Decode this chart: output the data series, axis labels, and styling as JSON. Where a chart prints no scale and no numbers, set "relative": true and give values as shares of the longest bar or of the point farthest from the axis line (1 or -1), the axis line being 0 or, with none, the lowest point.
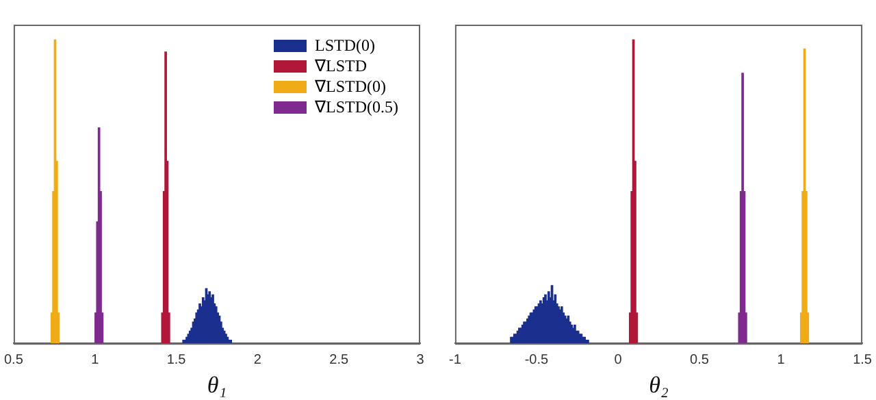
{
  "chart_data": [
    {
      "type": "bar",
      "xlabel": "θ₁",
      "relative": true,
      "xlim": [
        0.5,
        3
      ],
      "xticks": [
        0.5,
        1,
        1.5,
        2,
        2.5,
        3
      ],
      "legend": "top right",
      "series": [
        {
          "name": "LSTD(0)",
          "color": "#1b2f8f",
          "x": [
            1.545,
            1.555,
            1.565,
            1.575,
            1.585,
            1.595,
            1.605,
            1.615,
            1.625,
            1.635,
            1.645,
            1.655,
            1.665,
            1.675,
            1.685,
            1.695,
            1.705,
            1.715,
            1.725,
            1.735,
            1.745,
            1.755,
            1.765,
            1.775,
            1.785,
            1.795,
            1.805,
            1.815,
            1.825,
            1.835
          ],
          "values": [
            0.01,
            0.01,
            0.02,
            0.03,
            0.04,
            0.05,
            0.07,
            0.08,
            0.1,
            0.11,
            0.13,
            0.12,
            0.15,
            0.14,
            0.18,
            0.16,
            0.17,
            0.15,
            0.16,
            0.13,
            0.12,
            0.1,
            0.09,
            0.07,
            0.05,
            0.04,
            0.03,
            0.02,
            0.01,
            0.01
          ]
        },
        {
          "name": "∇LSTD",
          "color": "#b0183a",
          "x": [
            1.415,
            1.425,
            1.435,
            1.445,
            1.455
          ],
          "values": [
            0.1,
            0.5,
            0.96,
            0.6,
            0.1
          ]
        },
        {
          "name": "∇LSTD(0)",
          "color": "#f0ac18",
          "x": [
            0.735,
            0.745,
            0.755,
            0.765,
            0.775
          ],
          "values": [
            0.1,
            0.5,
            1,
            0.6,
            0.1
          ]
        },
        {
          "name": "∇LSTD(0.5)",
          "color": "#7e2a8e",
          "x": [
            1.005,
            1.015,
            1.025,
            1.035,
            1.045
          ],
          "values": [
            0.1,
            0.4,
            0.71,
            0.5,
            0.1
          ]
        }
      ]
    },
    {
      "type": "bar",
      "xlabel": "θ₂",
      "relative": true,
      "xlim": [
        -1,
        1.5
      ],
      "xticks": [
        -1,
        -0.5,
        0,
        0.5,
        1,
        1.5
      ],
      "series": [
        {
          "color": "#1b2f8f",
          "x": [
            -0.655,
            -0.645,
            -0.635,
            -0.625,
            -0.615,
            -0.605,
            -0.595,
            -0.585,
            -0.575,
            -0.565,
            -0.555,
            -0.545,
            -0.535,
            -0.525,
            -0.515,
            -0.505,
            -0.495,
            -0.485,
            -0.475,
            -0.465,
            -0.455,
            -0.445,
            -0.435,
            -0.425,
            -0.415,
            -0.405,
            -0.395,
            -0.385,
            -0.375,
            -0.365,
            -0.355,
            -0.345,
            -0.335,
            -0.325,
            -0.315,
            -0.305,
            -0.295,
            -0.285,
            -0.275,
            -0.265,
            -0.255,
            -0.245,
            -0.235,
            -0.225,
            -0.215,
            -0.205,
            -0.195,
            -0.185
          ],
          "values": [
            0.02,
            0.02,
            0.03,
            0.03,
            0.04,
            0.05,
            0.05,
            0.06,
            0.07,
            0.07,
            0.08,
            0.09,
            0.1,
            0.1,
            0.11,
            0.12,
            0.12,
            0.13,
            0.14,
            0.13,
            0.15,
            0.16,
            0.14,
            0.17,
            0.15,
            0.19,
            0.14,
            0.16,
            0.13,
            0.12,
            0.11,
            0.12,
            0.1,
            0.09,
            0.08,
            0.09,
            0.07,
            0.06,
            0.05,
            0.06,
            0.04,
            0.04,
            0.03,
            0.03,
            0.02,
            0.02,
            0.01,
            0.01
          ]
        },
        {
          "color": "#b0183a",
          "x": [
            0.075,
            0.085,
            0.095,
            0.105,
            0.115
          ],
          "values": [
            0.1,
            0.5,
            1,
            0.6,
            0.1
          ]
        },
        {
          "color": "#7e2a8e",
          "x": [
            0.745,
            0.755,
            0.765,
            0.775,
            0.785
          ],
          "values": [
            0.1,
            0.5,
            0.89,
            0.5,
            0.1
          ]
        },
        {
          "color": "#f0ac18",
          "x": [
            1.125,
            1.135,
            1.145,
            1.155,
            1.165
          ],
          "values": [
            0.1,
            0.5,
            0.97,
            0.5,
            0.1
          ]
        }
      ]
    }
  ]
}
